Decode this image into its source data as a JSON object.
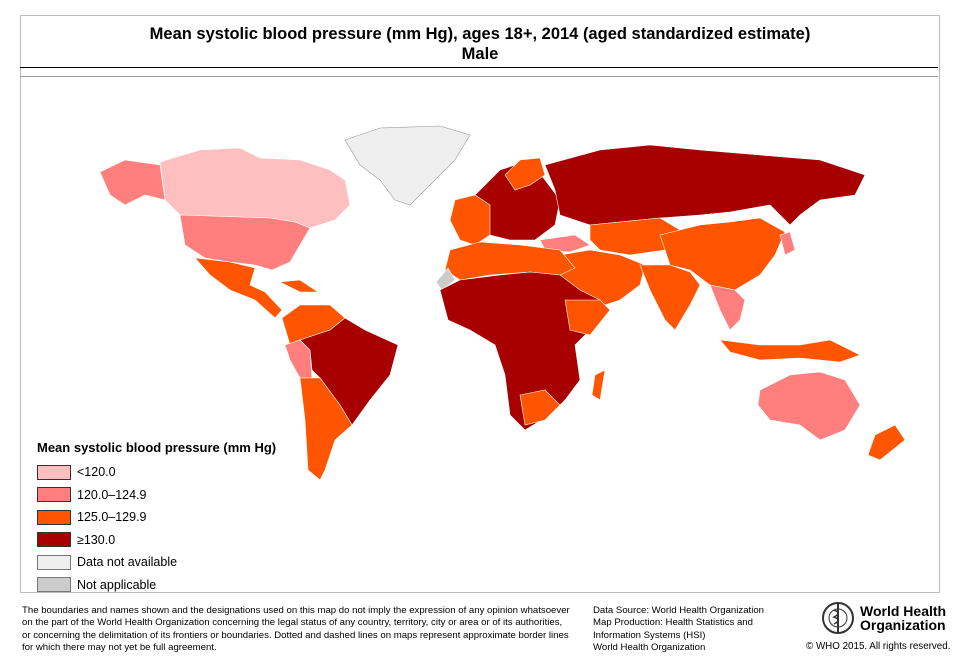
{
  "title": "Mean systolic blood pressure (mm Hg), ages 18+, 2014 (aged standardized estimate)",
  "subtitle": "Male",
  "colors": {
    "lt120": "#ffbfbf",
    "r120_124": "#ff7f7f",
    "r125_129": "#ff5500",
    "ge130": "#a80000",
    "na": "#efefef",
    "not_applicable": "#cccccc"
  },
  "legend": {
    "title": "Mean systolic blood pressure (mm Hg)",
    "items": [
      {
        "label": "<120.0",
        "color": "#ffbfbf"
      },
      {
        "label": "120.0–124.9",
        "color": "#ff7f7f"
      },
      {
        "label": "125.0–129.9",
        "color": "#ff5500"
      },
      {
        "label": "≥130.0",
        "color": "#a80000"
      },
      {
        "label": "Data not available",
        "color": "#efefef"
      },
      {
        "label": "Not applicable",
        "color": "#cccccc"
      }
    ]
  },
  "footer": {
    "disclaimer": [
      "The boundaries and names shown and the designations used on this map do not imply the expression of any opinion whatsoever",
      "on the part of the World Health Organization concerning the legal status of any country, territory, city or area or of its authorities,",
      "or concerning the delimitation of its frontiers or boundaries. Dotted and dashed lines on maps represent approximate border lines",
      "for which there may not yet be full agreement."
    ],
    "source": [
      "Data Source: World Health Organization",
      "Map Production: Health Statistics and",
      "Information Systems (HSI)",
      "World Health Organization"
    ],
    "logo_text": [
      "World Health",
      "Organization"
    ],
    "copyright": "© WHO 2015. All rights reserved."
  }
}
